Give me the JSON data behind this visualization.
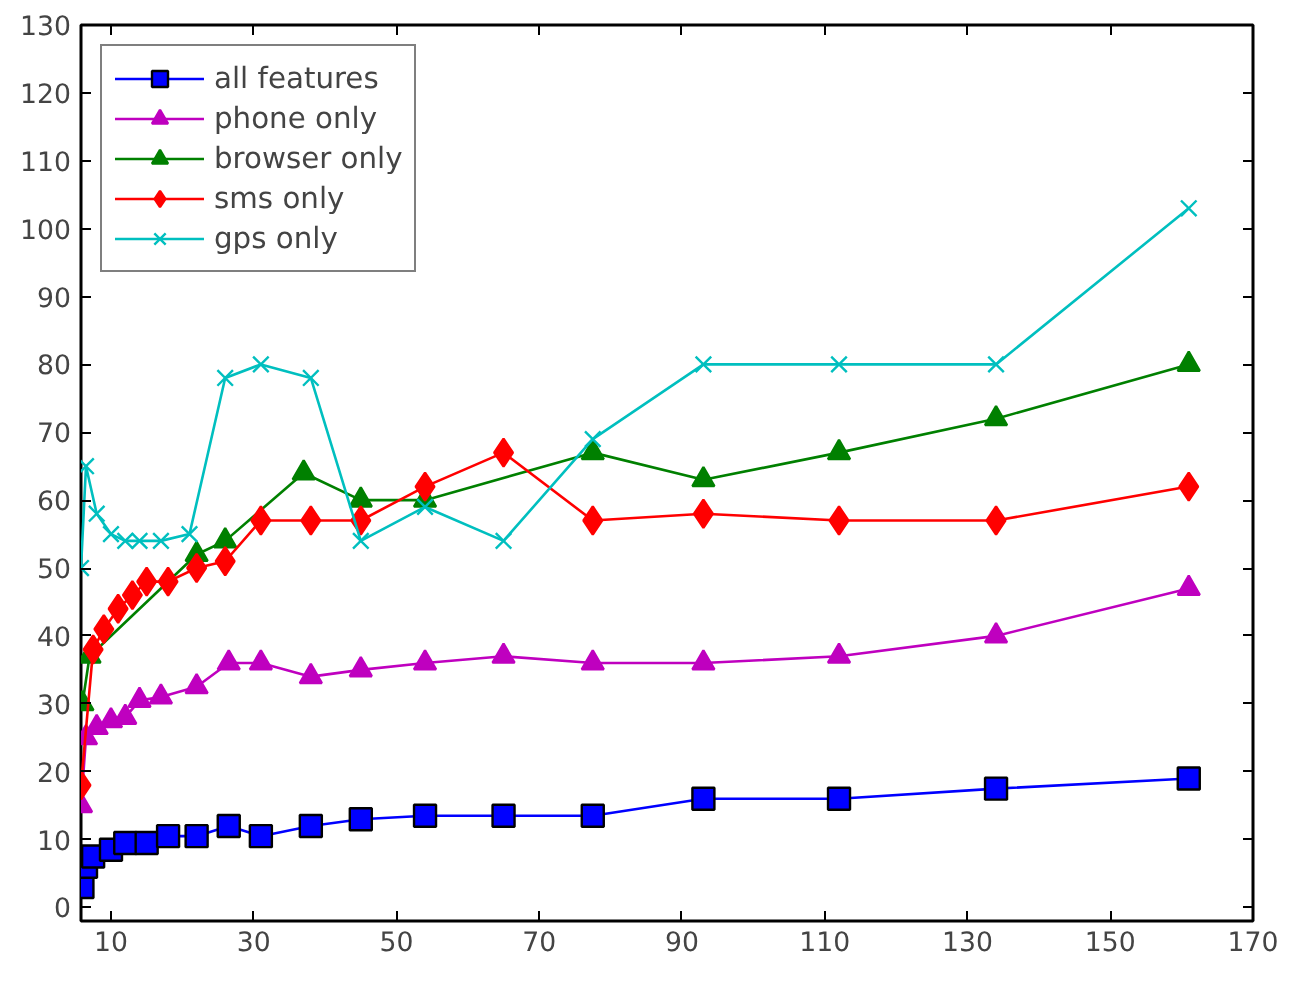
{
  "chart_data": {
    "type": "line",
    "xlim": [
      5.8,
      170
    ],
    "ylim": [
      -2,
      130
    ],
    "xticks": [
      10,
      30,
      50,
      70,
      90,
      110,
      130,
      150,
      170
    ],
    "yticks": [
      0,
      10,
      20,
      30,
      40,
      50,
      60,
      70,
      80,
      90,
      100,
      110,
      120,
      130
    ],
    "legend": "top left",
    "line_style": "solid",
    "series": [
      {
        "name": "all features",
        "color": "#0000ff",
        "marker": "square",
        "x": [
          6,
          6.5,
          7.5,
          10,
          12,
          15,
          18,
          22,
          26.5,
          31,
          38,
          45,
          54,
          65,
          77.5,
          93,
          112,
          134,
          161
        ],
        "values": [
          3,
          6,
          7.5,
          8.5,
          9.5,
          9.5,
          10.5,
          10.5,
          12,
          10.5,
          12,
          13,
          13.5,
          13.5,
          13.5,
          16,
          16,
          17.5,
          19
        ]
      },
      {
        "name": "phone only",
        "color": "#bf00bf",
        "marker": "triangle",
        "x": [
          5.8,
          6.5,
          8,
          10,
          12,
          14,
          17,
          22,
          26.5,
          31,
          38,
          45,
          54,
          65,
          77.5,
          93,
          112,
          134,
          161
        ],
        "values": [
          15,
          25,
          26.5,
          27.5,
          28,
          30.5,
          31,
          32.5,
          36,
          36,
          34,
          35,
          36,
          37,
          36,
          36,
          37,
          40,
          47
        ]
      },
      {
        "name": "browser only",
        "color": "#008000",
        "marker": "triangle",
        "x": [
          6,
          7,
          22,
          26,
          37,
          45,
          54,
          77.5,
          93,
          112,
          134,
          161
        ],
        "values": [
          30,
          37,
          52,
          54,
          64,
          60,
          60,
          67,
          63,
          67,
          72,
          80
        ]
      },
      {
        "name": "sms only",
        "color": "#ff0000",
        "marker": "diamond",
        "x": [
          5.8,
          7.5,
          9,
          11,
          13,
          15,
          18,
          22,
          26,
          31,
          38,
          45,
          54,
          65,
          77.5,
          93,
          112,
          134,
          161
        ],
        "values": [
          18,
          38,
          41,
          44,
          46,
          48,
          48,
          50,
          51,
          57,
          57,
          57,
          62,
          67,
          57,
          58,
          57,
          57,
          62
        ]
      },
      {
        "name": "gps only",
        "color": "#00bfbf",
        "marker": "cross",
        "x": [
          5.8,
          6.5,
          8,
          10,
          12,
          14,
          17,
          21,
          26,
          31,
          38,
          45,
          54,
          65,
          77.5,
          93,
          112,
          134,
          161
        ],
        "values": [
          50,
          65,
          58,
          55,
          54,
          54,
          54,
          55,
          78,
          80,
          78,
          54,
          59,
          54,
          69,
          80,
          80,
          80,
          103
        ]
      }
    ]
  }
}
